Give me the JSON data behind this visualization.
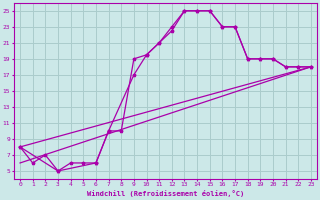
{
  "xlabel": "Windchill (Refroidissement éolien,°C)",
  "bg_color": "#cce8e8",
  "grid_color": "#aacccc",
  "line_color": "#aa00aa",
  "line1_x": [
    0,
    1,
    2,
    3,
    4,
    5,
    6,
    7,
    8,
    9,
    10,
    11,
    12,
    13,
    14,
    15,
    16,
    17,
    18,
    19,
    20,
    21,
    22,
    23
  ],
  "line1_y": [
    8,
    6,
    7,
    5,
    6,
    6,
    6,
    10,
    10,
    19,
    19.5,
    21,
    22.5,
    25,
    25,
    25,
    23,
    23,
    19,
    19,
    19,
    18,
    18,
    18
  ],
  "line2_x": [
    0,
    3,
    6,
    7,
    9,
    10,
    11,
    12,
    13,
    14,
    15,
    16,
    17,
    18,
    19,
    20,
    21,
    22,
    23
  ],
  "line2_y": [
    8,
    5,
    6,
    10,
    17,
    19.5,
    21,
    23,
    25,
    25,
    25,
    23,
    23,
    19,
    19,
    19,
    18,
    18,
    18
  ],
  "line3_x": [
    0,
    23
  ],
  "line3_y": [
    8,
    18
  ],
  "line4_x": [
    0,
    23
  ],
  "line4_y": [
    6,
    18
  ],
  "ylim": [
    4,
    26
  ],
  "xlim": [
    -0.5,
    23.5
  ],
  "yticks": [
    5,
    7,
    9,
    11,
    13,
    15,
    17,
    19,
    21,
    23,
    25
  ],
  "xticks": [
    0,
    1,
    2,
    3,
    4,
    5,
    6,
    7,
    8,
    9,
    10,
    11,
    12,
    13,
    14,
    15,
    16,
    17,
    18,
    19,
    20,
    21,
    22,
    23
  ]
}
